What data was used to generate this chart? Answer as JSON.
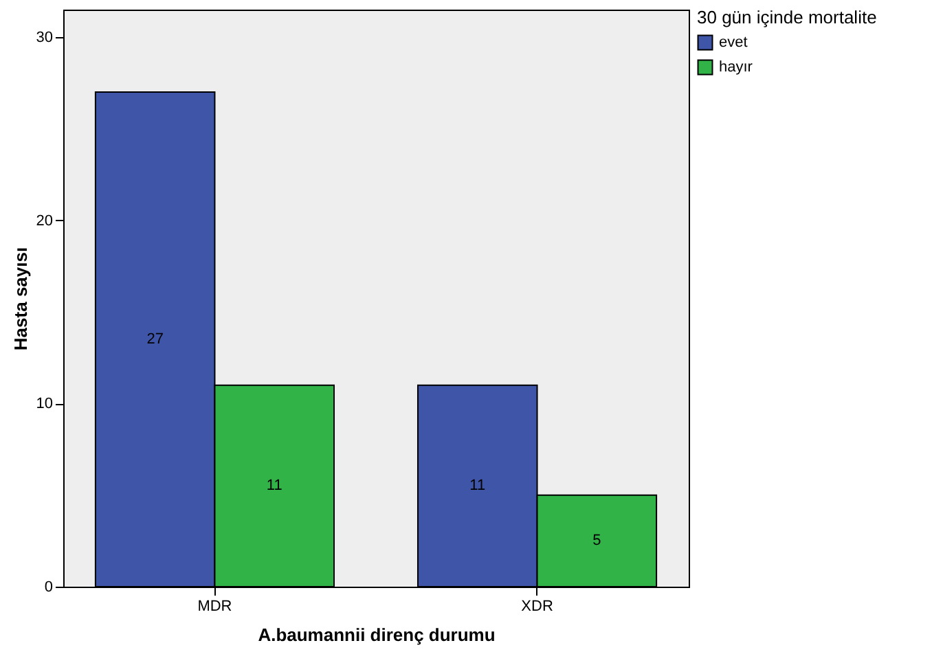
{
  "chart_data": {
    "type": "bar",
    "xlabel": "A.baumannii direnç durumu",
    "ylabel": "Hasta sayısı",
    "legend_title": "30 gün içinde mortalite",
    "categories": [
      "MDR",
      "XDR"
    ],
    "series": [
      {
        "name": "evet",
        "color": "#3f55a8",
        "values": [
          27,
          11
        ]
      },
      {
        "name": "hayır",
        "color": "#31b347",
        "values": [
          11,
          5
        ]
      }
    ],
    "ylim": [
      0,
      31.5
    ],
    "yticks": [
      0,
      10,
      20,
      30
    ],
    "grid": false,
    "legend": "top right",
    "data_labels": true
  }
}
